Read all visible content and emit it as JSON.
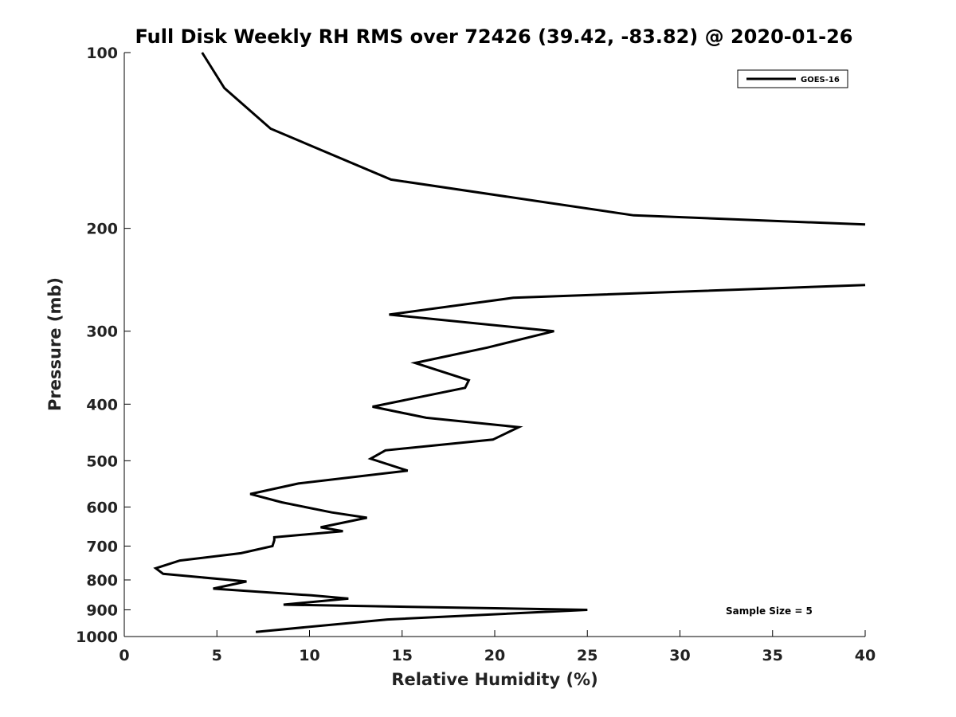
{
  "chart_data": {
    "type": "line",
    "title": "Full Disk Weekly RH RMS over 72426 (39.42, -83.82) @ 2020-01-26",
    "xlabel": "Relative Humidity (%)",
    "ylabel": "Pressure (mb)",
    "xlim": [
      0,
      40
    ],
    "ylim": [
      100,
      1000
    ],
    "y_scale": "log",
    "y_reversed": true,
    "grid": false,
    "legend_placement": "top-right",
    "x_ticks": [
      "0",
      "5",
      "10",
      "15",
      "20",
      "25",
      "30",
      "35",
      "40"
    ],
    "y_ticks": [
      "100",
      "200",
      "300",
      "400",
      "500",
      "600",
      "700",
      "800",
      "900",
      "1000"
    ],
    "annotation": "Sample Size = 5",
    "series": [
      {
        "name": "GOES-16",
        "color": "#000000",
        "points": [
          [
            4.2,
            100
          ],
          [
            5.4,
            115
          ],
          [
            7.9,
            135
          ],
          [
            14.4,
            165
          ],
          [
            27.5,
            190
          ],
          [
            40,
            197
          ],
          [
            null,
            208
          ],
          [
            40,
            250
          ],
          [
            21.0,
            263
          ],
          [
            14.3,
            281
          ],
          [
            23.2,
            300
          ],
          [
            19.6,
            320
          ],
          [
            15.7,
            340
          ],
          [
            18.6,
            364
          ],
          [
            18.4,
            375
          ],
          [
            13.4,
            404
          ],
          [
            16.3,
            422
          ],
          [
            21.3,
            438
          ],
          [
            19.9,
            460
          ],
          [
            14.1,
            480
          ],
          [
            13.3,
            496
          ],
          [
            15.3,
            520
          ],
          [
            9.4,
            547
          ],
          [
            6.8,
            570
          ],
          [
            8.5,
            589
          ],
          [
            11.2,
            613
          ],
          [
            13.1,
            626
          ],
          [
            10.6,
            650
          ],
          [
            11.8,
            660
          ],
          [
            8.1,
            676
          ],
          [
            8.1,
            684
          ],
          [
            8.0,
            700
          ],
          [
            6.3,
            720
          ],
          [
            3.0,
            741
          ],
          [
            1.7,
            764
          ],
          [
            2.1,
            781
          ],
          [
            6.6,
            805
          ],
          [
            4.8,
            828
          ],
          [
            10.1,
            850
          ],
          [
            12.1,
            861
          ],
          [
            8.6,
            882
          ],
          [
            25.0,
            900
          ],
          [
            14.2,
            935
          ],
          [
            7.1,
            982
          ]
        ]
      }
    ]
  }
}
